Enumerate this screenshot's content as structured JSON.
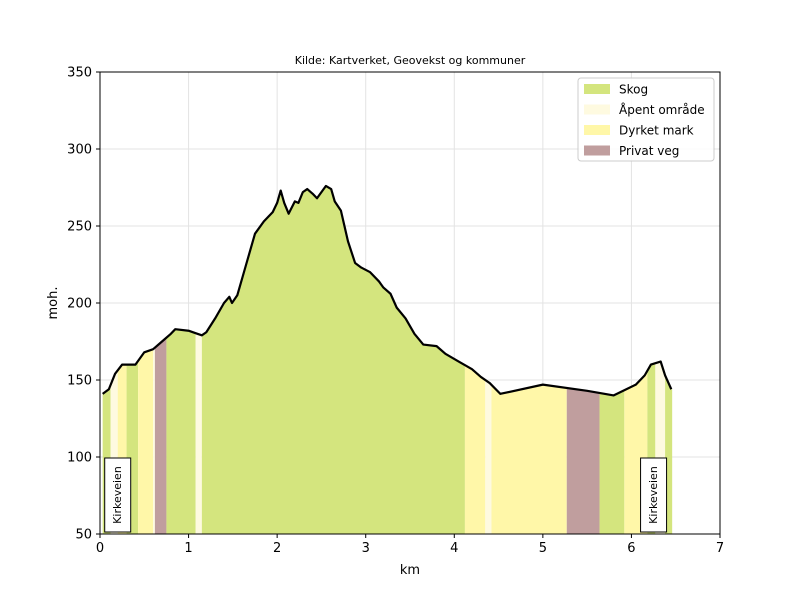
{
  "chart_data": {
    "type": "area",
    "title": "Kilde: Kartverket, Geovekst og kommuner",
    "xlabel": "km",
    "ylabel": "moh.",
    "xlim": [
      0,
      7
    ],
    "ylim": [
      50,
      350
    ],
    "xticks": [
      0,
      1,
      2,
      3,
      4,
      5,
      6,
      7
    ],
    "yticks": [
      50,
      100,
      150,
      200,
      250,
      300,
      350
    ],
    "grid": true,
    "legend_position": "top-right",
    "legend": [
      {
        "key": "skog",
        "label": "Skog",
        "color": "#d4e57e"
      },
      {
        "key": "apent",
        "label": "Åpent område",
        "color": "#fefae0"
      },
      {
        "key": "dyrket",
        "label": "Dyrket mark",
        "color": "#fff7a8"
      },
      {
        "key": "privat",
        "label": "Privat veg",
        "color": "#c09e9e"
      }
    ],
    "profile": {
      "km": [
        0.03,
        0.1,
        0.17,
        0.25,
        0.4,
        0.5,
        0.6,
        0.7,
        0.8,
        0.85,
        1.0,
        1.1,
        1.15,
        1.2,
        1.3,
        1.4,
        1.46,
        1.49,
        1.55,
        1.65,
        1.75,
        1.85,
        1.95,
        2.0,
        2.04,
        2.08,
        2.13,
        2.2,
        2.24,
        2.29,
        2.34,
        2.4,
        2.45,
        2.5,
        2.55,
        2.61,
        2.65,
        2.72,
        2.8,
        2.88,
        2.95,
        3.05,
        3.15,
        3.2,
        3.28,
        3.35,
        3.45,
        3.55,
        3.65,
        3.8,
        3.9,
        4.05,
        4.2,
        4.3,
        4.4,
        4.52,
        5.0,
        5.5,
        5.8,
        6.05,
        6.15,
        6.22,
        6.33,
        6.38,
        6.45
      ],
      "elevation": [
        141,
        144,
        154,
        160,
        160,
        168,
        170,
        175,
        180,
        183,
        182,
        180,
        179,
        181,
        190,
        200,
        204,
        200,
        205,
        225,
        245,
        253,
        259,
        265,
        273,
        265,
        258,
        266,
        265,
        272,
        274,
        271,
        268,
        272,
        276,
        274,
        266,
        260,
        240,
        226,
        223,
        220,
        214,
        210,
        206,
        197,
        190,
        180,
        173,
        172,
        167,
        162,
        157,
        152,
        148,
        141,
        147,
        143,
        140,
        147,
        153,
        160,
        162,
        153,
        144
      ]
    },
    "land_cover_segments": [
      {
        "type": "skog",
        "from": 0.03,
        "to": 0.12
      },
      {
        "type": "apent",
        "from": 0.12,
        "to": 0.2
      },
      {
        "type": "dyrket",
        "from": 0.2,
        "to": 0.3
      },
      {
        "type": "skog",
        "from": 0.3,
        "to": 0.43
      },
      {
        "type": "dyrket",
        "from": 0.43,
        "to": 0.6
      },
      {
        "type": "apent",
        "from": 0.6,
        "to": 0.62
      },
      {
        "type": "privat",
        "from": 0.62,
        "to": 0.75
      },
      {
        "type": "skog",
        "from": 0.75,
        "to": 1.08
      },
      {
        "type": "apent",
        "from": 1.08,
        "to": 1.15
      },
      {
        "type": "skog",
        "from": 1.15,
        "to": 4.12
      },
      {
        "type": "dyrket",
        "from": 4.12,
        "to": 4.35
      },
      {
        "type": "apent",
        "from": 4.35,
        "to": 4.42
      },
      {
        "type": "dyrket",
        "from": 4.42,
        "to": 5.27
      },
      {
        "type": "privat",
        "from": 5.27,
        "to": 5.64
      },
      {
        "type": "skog",
        "from": 5.64,
        "to": 5.92
      },
      {
        "type": "dyrket",
        "from": 5.92,
        "to": 6.18
      },
      {
        "type": "skog",
        "from": 6.18,
        "to": 6.27
      },
      {
        "type": "apent",
        "from": 6.27,
        "to": 6.38
      },
      {
        "type": "skog",
        "from": 6.38,
        "to": 6.46
      }
    ],
    "annotations": [
      {
        "text": "Kirkeveien",
        "km": 0.2
      },
      {
        "text": "Kirkeveien",
        "km": 6.25
      }
    ]
  }
}
